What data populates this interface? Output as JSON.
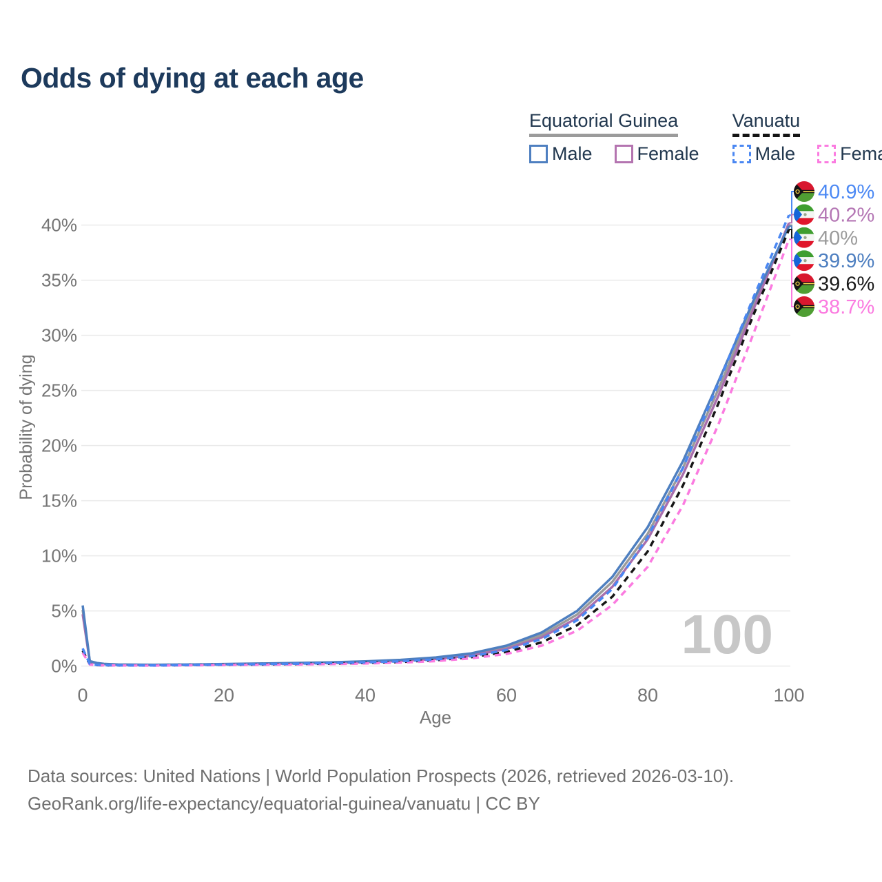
{
  "title": "Odds of dying at each age",
  "legend": {
    "groups": [
      {
        "id": "gq",
        "title": "Equatorial Guinea",
        "underline": "solid",
        "underline_color": "#9b9b9b",
        "items": [
          {
            "label": "Male",
            "color": "#4e7fc0",
            "dash": false
          },
          {
            "label": "Female",
            "color": "#b474b0",
            "dash": false
          }
        ]
      },
      {
        "id": "vu",
        "title": "Vanuatu",
        "underline": "dashed",
        "underline_color": "#141414",
        "items": [
          {
            "label": "Male",
            "color": "#4a87f2",
            "dash": true
          },
          {
            "label": "Female",
            "color": "#fb7be0",
            "dash": true
          }
        ]
      }
    ]
  },
  "chart_data": {
    "type": "line",
    "title": "Odds of dying at each age",
    "xlabel": "Age",
    "ylabel": "Probability of dying",
    "xlim": [
      0,
      100
    ],
    "ylim": [
      0,
      40
    ],
    "grid": true,
    "legend_position": "top-right",
    "watermark": "100",
    "x_ticks": [
      {
        "value": 0,
        "label": "0"
      },
      {
        "value": 20,
        "label": "20"
      },
      {
        "value": 40,
        "label": "40"
      },
      {
        "value": 60,
        "label": "60"
      },
      {
        "value": 80,
        "label": "80"
      },
      {
        "value": 100,
        "label": "100"
      }
    ],
    "y_ticks": [
      {
        "value": 0,
        "label": "0%"
      },
      {
        "value": 5,
        "label": "5%"
      },
      {
        "value": 10,
        "label": "10%"
      },
      {
        "value": 15,
        "label": "15%"
      },
      {
        "value": 20,
        "label": "20%"
      },
      {
        "value": 25,
        "label": "25%"
      },
      {
        "value": 30,
        "label": "30%"
      },
      {
        "value": 35,
        "label": "35%"
      },
      {
        "value": 40,
        "label": "40%"
      }
    ],
    "ages": [
      0,
      1,
      2,
      3,
      5,
      10,
      15,
      20,
      25,
      30,
      35,
      40,
      45,
      50,
      55,
      60,
      65,
      70,
      75,
      80,
      85,
      90,
      95,
      100
    ],
    "series": [
      {
        "id": "eg_both",
        "name": "Equatorial Guinea Both sexes",
        "country": "gq",
        "color": "#9b9b9b",
        "dash": false,
        "values": [
          5.1,
          0.42,
          0.26,
          0.19,
          0.13,
          0.1,
          0.13,
          0.17,
          0.21,
          0.25,
          0.31,
          0.39,
          0.51,
          0.71,
          1.05,
          1.7,
          2.82,
          4.67,
          7.65,
          12.0,
          18.0,
          25.1,
          32.8,
          40.0
        ]
      },
      {
        "id": "eg_female",
        "name": "Equatorial Guinea Female",
        "country": "gq",
        "color": "#a96fad",
        "dash": false,
        "values": [
          4.7,
          0.4,
          0.25,
          0.18,
          0.12,
          0.1,
          0.12,
          0.16,
          0.19,
          0.23,
          0.28,
          0.35,
          0.46,
          0.64,
          0.95,
          1.55,
          2.6,
          4.35,
          7.2,
          11.5,
          17.4,
          24.5,
          32.4,
          40.2
        ]
      },
      {
        "id": "eg_male",
        "name": "Equatorial Guinea Male",
        "country": "gq",
        "color": "#4e7fc0",
        "dash": false,
        "values": [
          5.5,
          0.45,
          0.28,
          0.2,
          0.14,
          0.11,
          0.14,
          0.19,
          0.23,
          0.28,
          0.34,
          0.43,
          0.56,
          0.78,
          1.15,
          1.85,
          3.05,
          5.0,
          8.1,
          12.6,
          18.6,
          25.8,
          33.2,
          39.9
        ]
      },
      {
        "id": "vu_both",
        "name": "Vanuatu Both sexes",
        "country": "vu",
        "color": "#161616",
        "dash": true,
        "values": [
          1.4,
          0.16,
          0.09,
          0.06,
          0.05,
          0.05,
          0.08,
          0.12,
          0.14,
          0.18,
          0.22,
          0.28,
          0.37,
          0.53,
          0.8,
          1.28,
          2.15,
          3.7,
          6.3,
          10.4,
          16.4,
          23.8,
          31.9,
          39.6
        ]
      },
      {
        "id": "vu_female",
        "name": "Vanuatu Female",
        "country": "vu",
        "color": "#fb7be0",
        "dash": true,
        "values": [
          1.2,
          0.14,
          0.08,
          0.06,
          0.05,
          0.04,
          0.06,
          0.09,
          0.11,
          0.14,
          0.18,
          0.23,
          0.31,
          0.45,
          0.7,
          1.1,
          1.85,
          3.2,
          5.55,
          9.0,
          14.6,
          21.9,
          30.2,
          38.7
        ]
      },
      {
        "id": "vu_male",
        "name": "Vanuatu Male",
        "country": "vu",
        "color": "#4a87f2",
        "dash": true,
        "values": [
          1.6,
          0.18,
          0.1,
          0.07,
          0.06,
          0.05,
          0.09,
          0.14,
          0.17,
          0.21,
          0.26,
          0.33,
          0.43,
          0.6,
          0.9,
          1.45,
          2.45,
          4.15,
          7.0,
          11.7,
          18.0,
          25.6,
          33.5,
          40.9
        ]
      }
    ],
    "end_labels": [
      {
        "series": "vu_male",
        "label": "40.9%",
        "color": "#4c89f4"
      },
      {
        "series": "eg_female",
        "label": "40.2%",
        "color": "#b476b4"
      },
      {
        "series": "eg_both",
        "label": "40%",
        "color": "#9b9b9b"
      },
      {
        "series": "eg_male",
        "label": "39.9%",
        "color": "#4e7fc0"
      },
      {
        "series": "vu_both",
        "label": "39.6%",
        "color": "#1a1a1a"
      },
      {
        "series": "vu_female",
        "label": "38.7%",
        "color": "#fb7be0"
      }
    ],
    "flag_colors": {
      "gq": {
        "green": "#3f9e2f",
        "white": "#f4f6f3",
        "red": "#e0162b",
        "blue": "#1565d8",
        "emblem": "#9aa68b"
      },
      "vu": {
        "red": "#d8182f",
        "green": "#4f9e33",
        "black": "#141414",
        "yellow": "#f6d44a"
      }
    },
    "style": {
      "gridline_color": "#eaeaea",
      "tick_color": "#757575",
      "watermark_color": "#c7c7c7",
      "line_width": 3.5
    }
  },
  "footer": {
    "line1": "Data sources: United Nations | World Population Prospects (2026, retrieved 2026-03-10).",
    "line2": "GeoRank.org/life-expectancy/equatorial-guinea/vanuatu | CC BY"
  }
}
